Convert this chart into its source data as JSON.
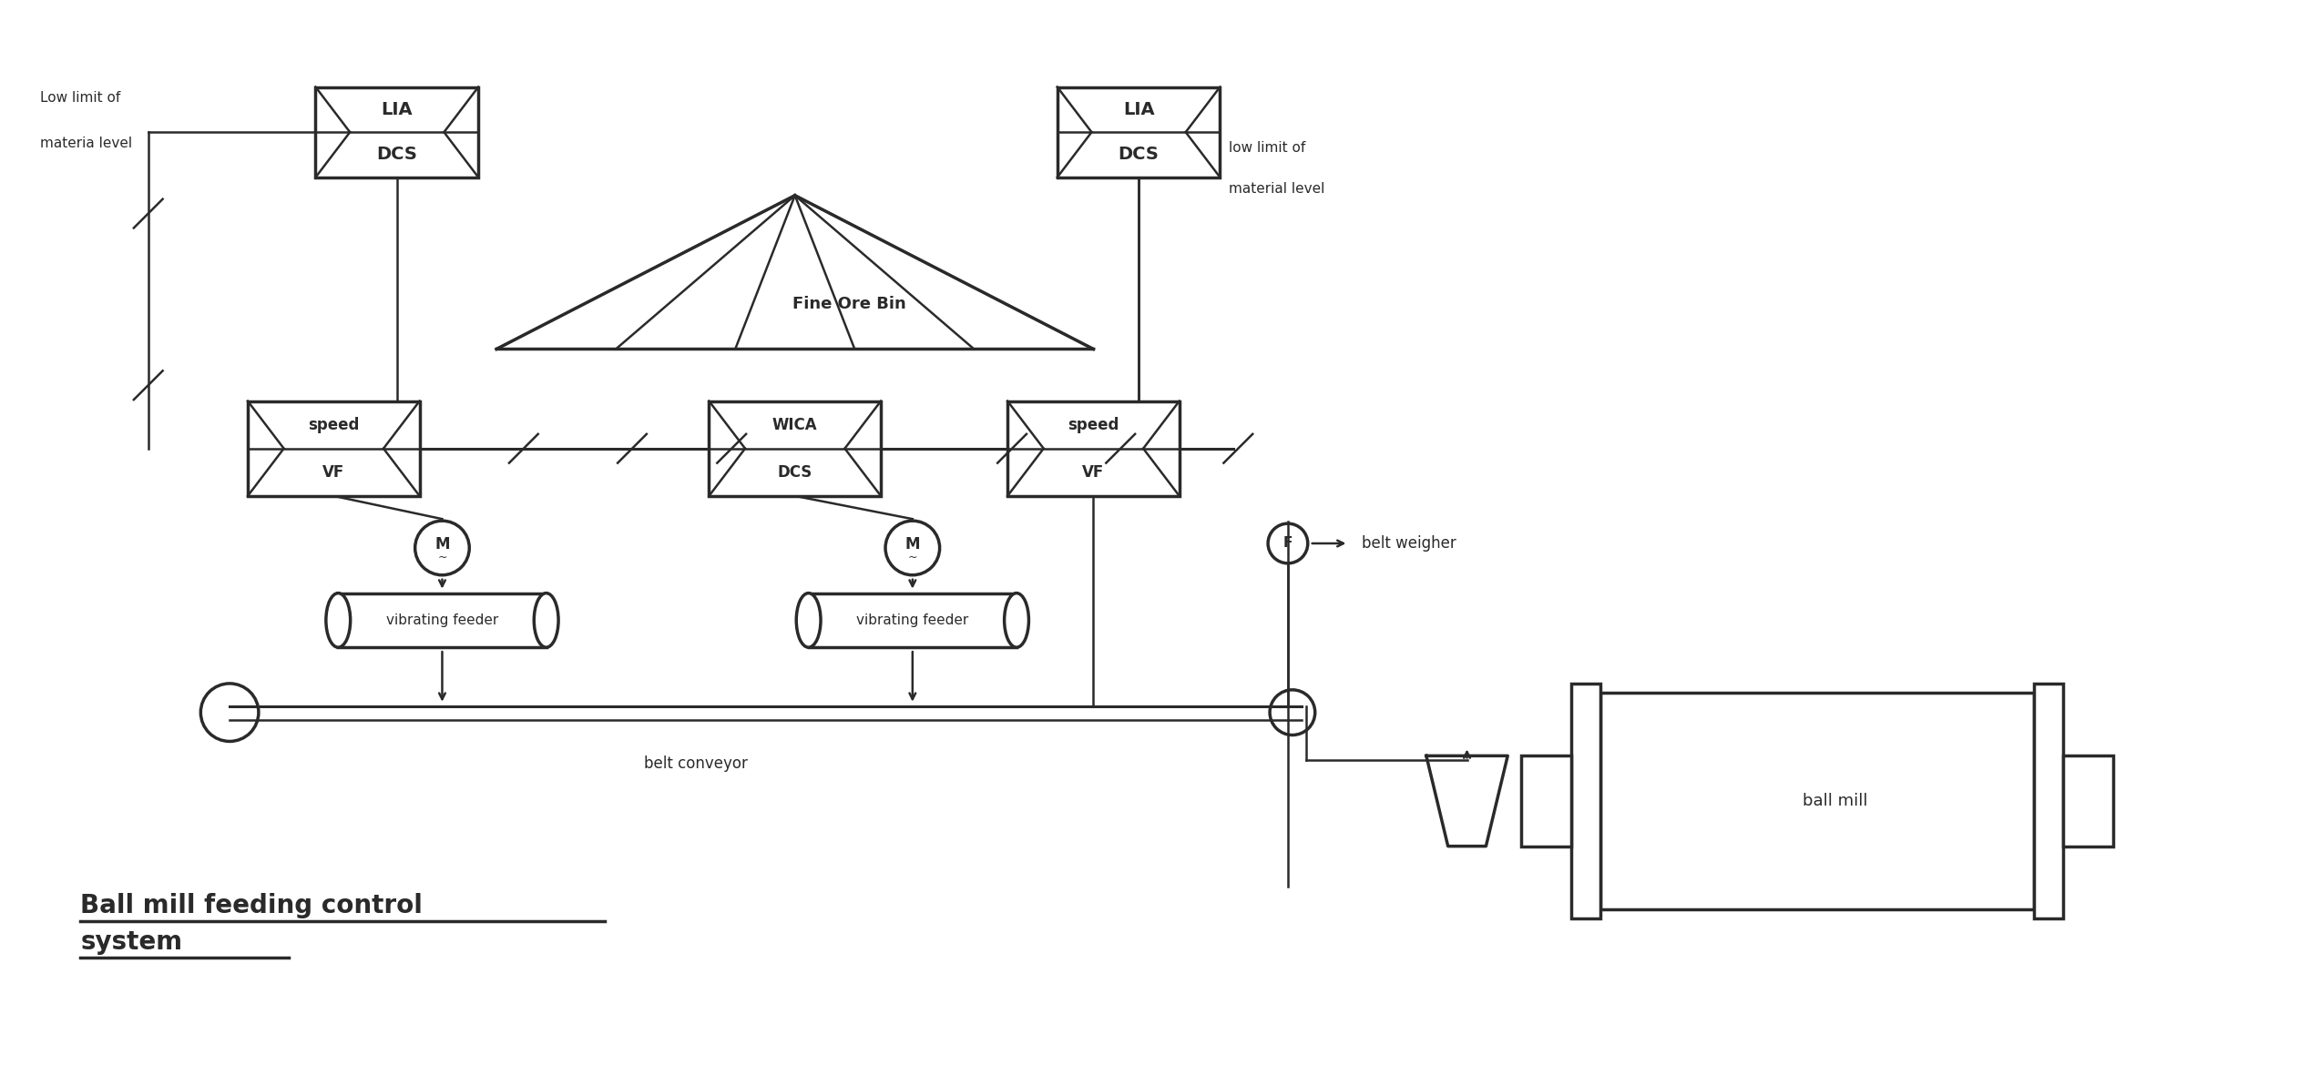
{
  "figsize": [
    25.24,
    11.92
  ],
  "dpi": 100,
  "line_color": "#2a2a2a",
  "title_line1": "Ball mill feeding control",
  "title_line2": "system",
  "label_fine_ore_bin": "Fine Ore Bin",
  "label_belt_conveyor": "belt conveyor",
  "label_belt_weigher": "belt weigher",
  "label_ball_mill": "ball mill",
  "label_vib1": "vibrating feeder",
  "label_vib2": "vibrating feeder",
  "label_low_limit_left1": "Low limit of",
  "label_low_limit_left2": "materia level",
  "label_low_limit_right1": "low limit of",
  "label_low_limit_right2": "material level",
  "box_lia1": [
    "LIA",
    "DCS"
  ],
  "box_lia2": [
    "LIA",
    "DCS"
  ],
  "box_vf1": [
    "speed",
    "VF"
  ],
  "box_wica": [
    "WICA",
    "DCS"
  ],
  "box_vf2": [
    "speed",
    "VF"
  ]
}
